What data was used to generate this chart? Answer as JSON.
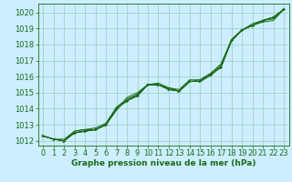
{
  "xlabel": "Graphe pression niveau de la mer (hPa)",
  "x": [
    0,
    1,
    2,
    3,
    4,
    5,
    6,
    7,
    8,
    9,
    10,
    11,
    12,
    13,
    14,
    15,
    16,
    17,
    18,
    19,
    20,
    21,
    22,
    23
  ],
  "series": [
    [
      1012.3,
      1012.1,
      1012.0,
      1012.5,
      1012.6,
      1012.7,
      1013.0,
      1014.0,
      1014.5,
      1014.8,
      1015.5,
      1015.5,
      1015.2,
      1015.1,
      1015.7,
      1015.7,
      1016.1,
      1016.6,
      1018.3,
      1018.9,
      1019.2,
      1019.5,
      1019.6,
      1020.2
    ],
    [
      1012.3,
      1012.1,
      1012.1,
      1012.6,
      1012.7,
      1012.8,
      1013.1,
      1014.1,
      1014.6,
      1014.9,
      1015.5,
      1015.5,
      1015.3,
      1015.1,
      1015.7,
      1015.8,
      1016.2,
      1016.8,
      1018.3,
      1018.9,
      1019.2,
      1019.5,
      1019.7,
      1020.2
    ],
    [
      1012.3,
      1012.1,
      1012.0,
      1012.6,
      1012.7,
      1012.7,
      1013.0,
      1014.0,
      1014.5,
      1014.9,
      1015.5,
      1015.6,
      1015.3,
      1015.2,
      1015.8,
      1015.8,
      1016.2,
      1016.7,
      1018.3,
      1018.9,
      1019.3,
      1019.5,
      1019.7,
      1020.2
    ],
    [
      1012.3,
      1012.1,
      1012.0,
      1012.5,
      1012.6,
      1012.7,
      1013.0,
      1013.9,
      1014.7,
      1015.0,
      1015.5,
      1015.5,
      1015.2,
      1015.1,
      1015.7,
      1015.7,
      1016.1,
      1016.6,
      1018.2,
      1018.9,
      1019.2,
      1019.4,
      1019.5,
      1020.2
    ],
    [
      1012.3,
      1012.1,
      1012.0,
      1012.5,
      1012.6,
      1012.7,
      1013.0,
      1014.0,
      1014.5,
      1014.8,
      1015.5,
      1015.5,
      1015.2,
      1015.1,
      1015.7,
      1015.7,
      1016.1,
      1016.6,
      1018.3,
      1018.9,
      1019.2,
      1019.5,
      1019.7,
      1020.2
    ]
  ],
  "markers_y": [
    1012.3,
    1012.1,
    1012.0,
    1012.5,
    1012.6,
    1012.7,
    1013.0,
    1014.0,
    1014.5,
    1014.8,
    1015.5,
    1015.5,
    1015.2,
    1015.1,
    1015.7,
    1015.7,
    1016.1,
    1016.6,
    1018.3,
    1018.9,
    1019.2,
    1019.5,
    1019.7,
    1020.2
  ],
  "ylim": [
    1011.7,
    1020.55
  ],
  "yticks": [
    1012,
    1013,
    1014,
    1015,
    1016,
    1017,
    1018,
    1019,
    1020
  ],
  "xticks": [
    0,
    1,
    2,
    3,
    4,
    5,
    6,
    7,
    8,
    9,
    10,
    11,
    12,
    13,
    14,
    15,
    16,
    17,
    18,
    19,
    20,
    21,
    22,
    23
  ],
  "line_color": "#1a6b1a",
  "marker_color": "#1a6b1a",
  "bg_color": "#cceeff",
  "grid_color": "#99ccbb",
  "text_color": "#1a6b1a",
  "label_fontsize": 6.5,
  "tick_fontsize": 6
}
